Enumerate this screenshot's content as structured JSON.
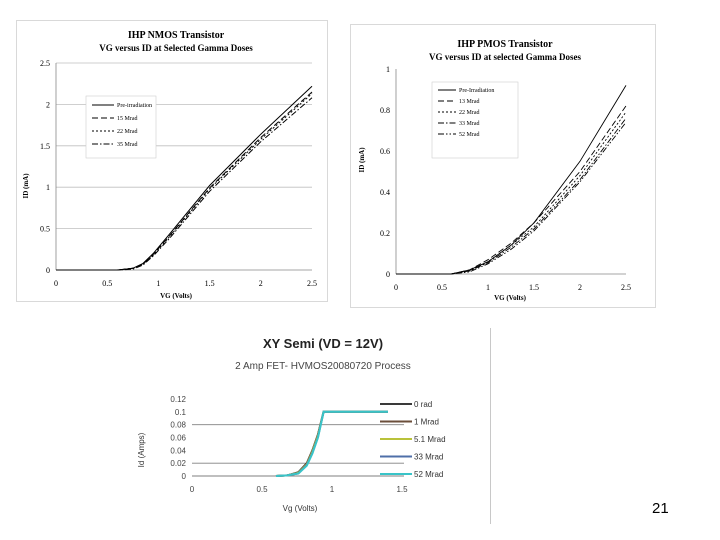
{
  "page_number": "21",
  "colors": {
    "frame": "#d9d9d9",
    "grid": "#bfbfbf",
    "c3_grid": "#808080",
    "c3_series": [
      "#3a3a3a",
      "#6b4e3a",
      "#b9c23a",
      "#4f6fa8",
      "#39c4c8"
    ]
  },
  "chart_data": [
    {
      "type": "line",
      "title": "IHP NMOS Transistor",
      "subtitle": "VG versus ID at Selected Gamma Doses",
      "xlabel": "VG (Volts)",
      "ylabel": "ID (mA)",
      "xlim": [
        0,
        2.5
      ],
      "ylim": [
        0,
        2.5
      ],
      "xticks": [
        "0",
        "0.5",
        "1",
        "1.5",
        "2",
        "2.5"
      ],
      "yticks": [
        "0",
        "0.5",
        "1",
        "1.5",
        "2",
        "2.5"
      ],
      "grid": "horizontal",
      "legend_position": "middle-left",
      "series": [
        {
          "name": "Pre-irradiation",
          "dash": "solid",
          "x": [
            0,
            0.6,
            0.75,
            0.85,
            0.95,
            1.1,
            1.5,
            2.0,
            2.5
          ],
          "y": [
            0,
            0,
            0.02,
            0.08,
            0.2,
            0.42,
            1.02,
            1.64,
            2.22
          ]
        },
        {
          "name": "15 Mrad",
          "dash": "long",
          "x": [
            0,
            0.6,
            0.75,
            0.85,
            0.95,
            1.1,
            1.5,
            2.0,
            2.5
          ],
          "y": [
            0,
            0,
            0.02,
            0.07,
            0.19,
            0.4,
            0.99,
            1.6,
            2.15
          ]
        },
        {
          "name": "22 Mrad",
          "dash": "short",
          "x": [
            0,
            0.6,
            0.75,
            0.85,
            0.95,
            1.1,
            1.5,
            2.0,
            2.5
          ],
          "y": [
            0,
            0,
            0.02,
            0.07,
            0.18,
            0.39,
            0.98,
            1.58,
            2.13
          ]
        },
        {
          "name": "35 Mrad",
          "dash": "dashdot",
          "x": [
            0,
            0.6,
            0.75,
            0.85,
            0.95,
            1.1,
            1.5,
            2.0,
            2.5
          ],
          "y": [
            0,
            0,
            0.01,
            0.06,
            0.17,
            0.37,
            0.95,
            1.55,
            2.08
          ]
        }
      ]
    },
    {
      "type": "line",
      "title": "IHP PMOS Transistor",
      "subtitle": "VG versus ID at selected Gamma Doses",
      "xlabel": "VG (Volts)",
      "ylabel": "ID (mA)",
      "xlim": [
        0,
        2.5
      ],
      "ylim": [
        0,
        1
      ],
      "xticks": [
        "0",
        "0.5",
        "1",
        "1.5",
        "2",
        "2.5"
      ],
      "yticks": [
        "0",
        "0.2",
        "0.4",
        "0.6",
        "0.8",
        "1"
      ],
      "grid": "none",
      "legend_position": "top-right",
      "series": [
        {
          "name": "Pre-Irradiation",
          "dash": "solid",
          "x": [
            0,
            0.6,
            0.8,
            1.0,
            1.25,
            1.5,
            2.0,
            2.5
          ],
          "y": [
            0,
            0,
            0.02,
            0.06,
            0.14,
            0.25,
            0.55,
            0.92
          ]
        },
        {
          "name": "13 Mrad",
          "dash": "long",
          "x": [
            0,
            0.6,
            0.8,
            1.0,
            1.25,
            1.5,
            2.0,
            2.5
          ],
          "y": [
            0,
            0,
            0.02,
            0.07,
            0.15,
            0.25,
            0.5,
            0.82
          ]
        },
        {
          "name": "22 Mrad",
          "dash": "short",
          "x": [
            0,
            0.6,
            0.8,
            1.0,
            1.25,
            1.5,
            2.0,
            2.5
          ],
          "y": [
            0,
            0,
            0.015,
            0.06,
            0.14,
            0.23,
            0.48,
            0.79
          ]
        },
        {
          "name": "33 Mrad",
          "dash": "dashdot",
          "x": [
            0,
            0.6,
            0.8,
            1.0,
            1.25,
            1.5,
            2.0,
            2.5
          ],
          "y": [
            0,
            0,
            0.015,
            0.055,
            0.13,
            0.22,
            0.46,
            0.76
          ]
        },
        {
          "name": "52 Mrad",
          "dash": "dashdotdot",
          "x": [
            0,
            0.6,
            0.8,
            1.0,
            1.25,
            1.5,
            2.0,
            2.5
          ],
          "y": [
            0,
            0,
            0.01,
            0.05,
            0.12,
            0.21,
            0.45,
            0.74
          ]
        }
      ]
    },
    {
      "type": "line",
      "title": "XY Semi (VD = 12V)",
      "subtitle": "2 Amp FET- HVMOS20080720 Process",
      "xlabel": "Vg (Volts)",
      "ylabel": "Id (Amps)",
      "xlim": [
        0,
        1.5
      ],
      "ylim": [
        0,
        0.12
      ],
      "xticks": [
        "0",
        "0.5",
        "1",
        "1.5"
      ],
      "yticks": [
        "0",
        "0.02",
        "0.04",
        "0.06",
        "0.08",
        "0.1",
        "0.12"
      ],
      "grid": "partial",
      "legend_position": "right",
      "series": [
        {
          "name": "0 rad",
          "x": [
            0.6,
            0.68,
            0.76,
            0.82,
            0.86,
            0.9,
            0.94,
            1.0,
            1.4
          ],
          "y": [
            0,
            0.001,
            0.006,
            0.02,
            0.04,
            0.065,
            0.1,
            0.1,
            0.1
          ]
        },
        {
          "name": "1 Mrad",
          "x": [
            0.6,
            0.68,
            0.76,
            0.82,
            0.86,
            0.9,
            0.94,
            1.0,
            1.4
          ],
          "y": [
            0,
            0.001,
            0.005,
            0.019,
            0.039,
            0.064,
            0.1,
            0.1,
            0.1
          ]
        },
        {
          "name": "5.1 Mrad",
          "x": [
            0.6,
            0.68,
            0.76,
            0.82,
            0.86,
            0.9,
            0.94,
            1.0,
            1.4
          ],
          "y": [
            0,
            0.001,
            0.005,
            0.018,
            0.038,
            0.063,
            0.1,
            0.1,
            0.1
          ]
        },
        {
          "name": "33 Mrad",
          "x": [
            0.6,
            0.68,
            0.76,
            0.82,
            0.86,
            0.9,
            0.94,
            1.0,
            1.4
          ],
          "y": [
            0,
            0.001,
            0.004,
            0.017,
            0.036,
            0.061,
            0.1,
            0.1,
            0.1
          ]
        },
        {
          "name": "52 Mrad",
          "x": [
            0.6,
            0.68,
            0.76,
            0.82,
            0.86,
            0.9,
            0.94,
            1.0,
            1.4
          ],
          "y": [
            0,
            0.001,
            0.004,
            0.016,
            0.035,
            0.06,
            0.1,
            0.1,
            0.1
          ]
        }
      ]
    }
  ]
}
